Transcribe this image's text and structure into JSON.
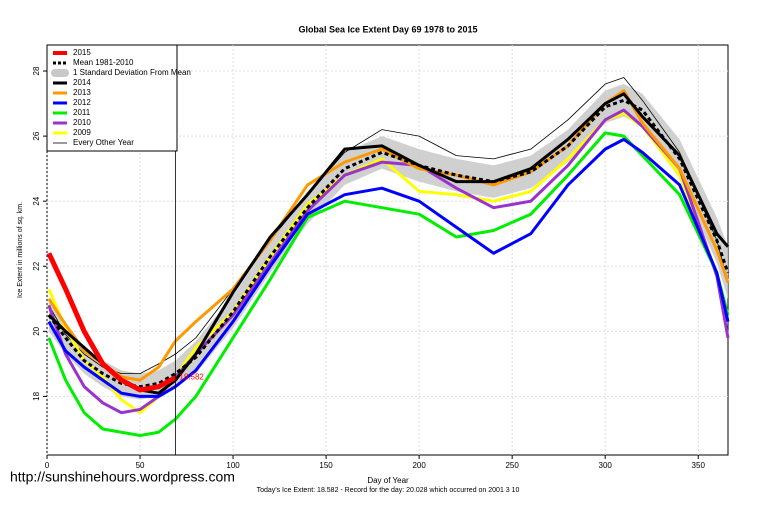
{
  "chart_data": {
    "type": "line",
    "title": "Global Sea Ice Extent Day 69 1978 to 2015",
    "x_label": "Day of Year",
    "y_label": "Ice Extent in millions of sq. km.",
    "footnote": "Today's Ice Extent: 18.582  - Record for the day: 20.028 which occurred on 2001 3 10",
    "watermark": "http://sunshinehours.wordpress.com",
    "marker_day": 69,
    "xlim": [
      0,
      366
    ],
    "xticks": [
      0,
      50,
      100,
      150,
      200,
      250,
      300,
      350
    ],
    "ylim": [
      16.2,
      28.8
    ],
    "yticks": [
      18,
      20,
      22,
      24,
      26,
      28
    ],
    "grid": true,
    "legend": "top-left",
    "x": [
      1,
      10,
      20,
      30,
      40,
      50,
      60,
      69,
      80,
      100,
      120,
      140,
      160,
      180,
      200,
      220,
      240,
      260,
      280,
      300,
      310,
      320,
      340,
      360,
      366
    ],
    "series": [
      {
        "name": "2015",
        "color": "#ff0000",
        "width": 5,
        "values": [
          22.4,
          21.3,
          20.0,
          19.0,
          18.5,
          18.2,
          18.3,
          18.58,
          null,
          null,
          null,
          null,
          null,
          null,
          null,
          null,
          null,
          null,
          null,
          null,
          null,
          null,
          null,
          null,
          null
        ],
        "value_labels": [
          null,
          null,
          null,
          null,
          null,
          null,
          null,
          "18.582",
          null,
          null,
          null,
          null,
          null,
          null,
          null,
          null,
          null,
          null,
          null,
          null,
          null,
          null,
          null,
          null,
          null
        ]
      },
      {
        "name": "Mean 1981-2010",
        "color": "#000000",
        "width": 3,
        "dashed": true,
        "values": [
          20.5,
          19.8,
          19.1,
          18.7,
          18.4,
          18.3,
          18.4,
          18.7,
          19.2,
          20.6,
          22.3,
          23.8,
          25.0,
          25.5,
          25.1,
          24.8,
          24.6,
          24.9,
          25.7,
          26.9,
          27.1,
          26.8,
          25.3,
          22.8,
          21.8
        ]
      },
      {
        "name": "1 Standard Deviation From Mean",
        "color": "#c8c8c8",
        "band": true,
        "upper": [
          21.0,
          20.3,
          19.5,
          19.1,
          18.8,
          18.7,
          18.8,
          19.1,
          19.7,
          21.1,
          22.8,
          24.3,
          25.5,
          26.0,
          25.6,
          25.3,
          25.1,
          25.4,
          26.2,
          27.4,
          27.6,
          27.3,
          25.9,
          23.5,
          22.6
        ],
        "lower": [
          20.0,
          19.3,
          18.7,
          18.3,
          18.0,
          17.9,
          18.0,
          18.3,
          18.7,
          20.1,
          21.8,
          23.3,
          24.5,
          25.0,
          24.6,
          24.3,
          24.1,
          24.4,
          25.2,
          26.4,
          26.6,
          26.3,
          24.7,
          22.1,
          21.0
        ]
      },
      {
        "name": "2014",
        "color": "#000000",
        "width": 3,
        "values": [
          20.5,
          20.0,
          19.5,
          19.0,
          18.5,
          18.2,
          18.1,
          18.5,
          19.3,
          21.2,
          22.9,
          24.2,
          25.6,
          25.7,
          25.1,
          24.6,
          24.6,
          25.0,
          25.9,
          27.0,
          27.3,
          26.6,
          25.4,
          23.0,
          22.6
        ]
      },
      {
        "name": "2013",
        "color": "#ff9900",
        "width": 3,
        "values": [
          21.0,
          20.2,
          19.4,
          19.0,
          18.6,
          18.5,
          18.9,
          19.7,
          20.3,
          21.3,
          22.8,
          24.5,
          25.2,
          25.6,
          25.0,
          24.8,
          24.5,
          24.9,
          25.7,
          27.0,
          27.4,
          26.4,
          25.0,
          22.5,
          21.5
        ]
      },
      {
        "name": "2012",
        "color": "#0000ff",
        "width": 3,
        "values": [
          20.3,
          19.4,
          18.9,
          18.5,
          18.1,
          18.0,
          18.0,
          18.3,
          18.8,
          20.3,
          22.0,
          23.6,
          24.2,
          24.4,
          24.0,
          23.2,
          22.4,
          23.0,
          24.5,
          25.6,
          25.9,
          25.5,
          24.5,
          21.8,
          20.3
        ]
      },
      {
        "name": "2011",
        "color": "#00ee00",
        "width": 3,
        "values": [
          19.8,
          18.5,
          17.5,
          17.0,
          16.9,
          16.8,
          16.9,
          17.3,
          18.0,
          19.8,
          21.6,
          23.5,
          24.0,
          23.8,
          23.6,
          22.9,
          23.1,
          23.6,
          24.8,
          26.1,
          26.0,
          25.4,
          24.2,
          21.8,
          20.5
        ]
      },
      {
        "name": "2010",
        "color": "#9933cc",
        "width": 3,
        "values": [
          20.8,
          19.3,
          18.3,
          17.8,
          17.5,
          17.6,
          18.0,
          18.6,
          19.3,
          20.5,
          22.1,
          23.7,
          24.8,
          25.2,
          25.1,
          24.4,
          23.8,
          24.0,
          25.1,
          26.5,
          26.8,
          26.3,
          25.0,
          21.7,
          19.8
        ]
      },
      {
        "name": "2009",
        "color": "#ffff00",
        "width": 3,
        "values": [
          21.3,
          20.1,
          19.1,
          18.6,
          17.9,
          17.5,
          18.0,
          18.6,
          19.5,
          20.6,
          22.3,
          23.9,
          24.8,
          25.3,
          24.3,
          24.2,
          24.0,
          24.3,
          25.3,
          26.5,
          26.7,
          26.3,
          24.8,
          21.8,
          20.3
        ]
      },
      {
        "name": "Every Other Year",
        "color": "#000000",
        "width": 0.8,
        "values": [
          20.8,
          19.9,
          19.3,
          18.9,
          18.7,
          18.7,
          19.0,
          19.3,
          19.8,
          21.3,
          22.8,
          24.2,
          25.5,
          26.2,
          26.0,
          25.4,
          25.3,
          25.6,
          26.5,
          27.6,
          27.8,
          27.1,
          25.5,
          22.8,
          21.5
        ]
      }
    ]
  }
}
